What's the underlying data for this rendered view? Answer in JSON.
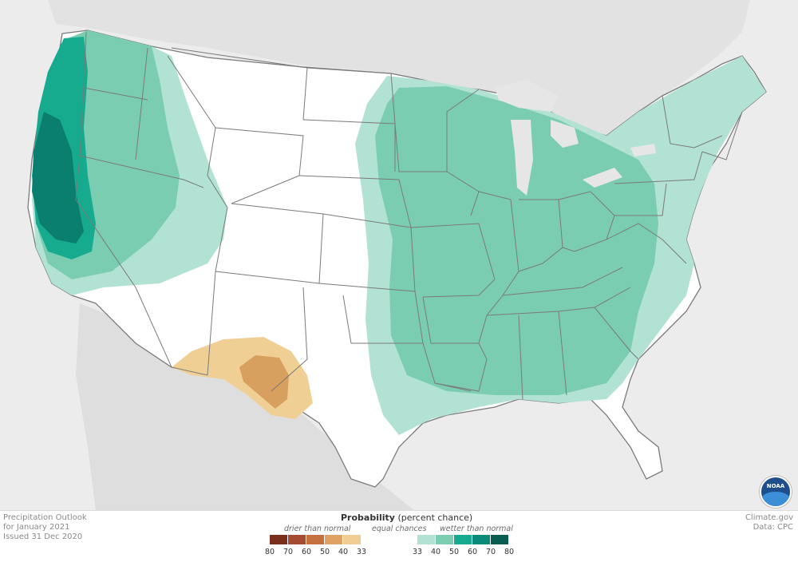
{
  "map": {
    "colors": {
      "land_background": "#e6e6e6",
      "us_base": "#ffffff",
      "wet_33_40": "#b2e2d3",
      "wet_40_50": "#7bcdb2",
      "wet_50_60": "#16ab8f",
      "wet_60_70": "#0a7f70",
      "dry_33_40": "#f0cf95",
      "dry_40_50": "#d8a05f",
      "state_lines": "#7a7a7a"
    }
  },
  "info": {
    "line1": "Precipitation Outlook",
    "line2": "for January 2021",
    "line3": "Issued 31 Dec 2020"
  },
  "credits": {
    "site": "Climate.gov",
    "data": "Data: CPC"
  },
  "legend": {
    "title_bold": "Probability",
    "title_rest": " (percent chance)",
    "drier": "drier than normal",
    "equal": "equal chances",
    "wetter": "wetter than normal",
    "dry_swatches": [
      "#7a2f1c",
      "#a54a33",
      "#c5703f",
      "#dea262",
      "#f1cd94"
    ],
    "equal_swatch": "#ffffff",
    "wet_swatches": [
      "#b2e2d3",
      "#7bcdb2",
      "#16ab8f",
      "#0a8a78",
      "#075d52"
    ],
    "ticks": [
      "80",
      "70",
      "60",
      "50",
      "40",
      "33",
      "33",
      "40",
      "50",
      "60",
      "70",
      "80"
    ]
  },
  "logo": {
    "text": "NOAA"
  }
}
